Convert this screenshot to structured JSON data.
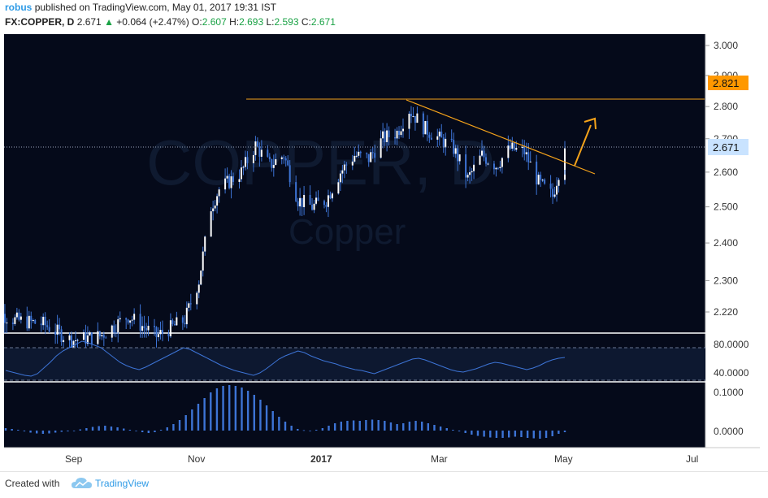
{
  "header": {
    "author": "robus",
    "published_text": "published on TradingView.com, May 01, 2017 19:31 IST",
    "symbol": "FX:COPPER, D",
    "last": "2.671",
    "up_arrow_icon": "up-triangle-icon",
    "change": "+0.064 (+2.47%)",
    "o_label": "O:",
    "o_value": "2.607",
    "h_label": "H:",
    "h_value": "2.693",
    "l_label": "L:",
    "l_value": "2.593",
    "c_label": "C:",
    "c_value": "2.671"
  },
  "watermark": {
    "symbol": "COPPER, D",
    "name": "Copper"
  },
  "price_axis": {
    "ticks": [
      "3.000",
      "2.900",
      "2.800",
      "2.700",
      "2.600",
      "2.500",
      "2.400",
      "2.300",
      "2.220"
    ],
    "badge_level": "2.821",
    "badge_last": "2.671"
  },
  "rsi_axis": {
    "ticks": [
      "80.0000",
      "40.0000"
    ]
  },
  "macd_axis": {
    "ticks": [
      "0.1000",
      "0.0000"
    ]
  },
  "time_axis": {
    "labels": [
      "Sep",
      "Nov",
      "2017",
      "Mar",
      "May",
      "Jul"
    ]
  },
  "colors": {
    "background": "#050a1a",
    "candle": "#3d74d6",
    "trendline": "#f5a31a",
    "badge_level": "#ff9800",
    "badge_last": "#c9e3ff",
    "axis_text": "#333333"
  },
  "chart_data": {
    "type": "candlestick",
    "symbol": "FX:COPPER",
    "timeframe": "D",
    "y_scale": "log",
    "ylim": [
      2.15,
      3.03
    ],
    "last_price": 2.671,
    "ohlc_last": {
      "open": 2.607,
      "high": 2.693,
      "low": 2.593,
      "close": 2.671
    },
    "horizontal_levels": [
      2.821
    ],
    "trendline": {
      "from": [
        "2017-02-13",
        2.82
      ],
      "to": [
        "2017-05-08",
        2.59
      ]
    },
    "projection_arrow": {
      "from": [
        "2017-05-04",
        2.61
      ],
      "to": [
        "2017-05-18",
        2.76
      ]
    },
    "close_series": [
      [
        "2016-07-19",
        2.23
      ],
      [
        "2016-08-02",
        2.2
      ],
      [
        "2016-08-16",
        2.19
      ],
      [
        "2016-08-30",
        2.15
      ],
      [
        "2016-09-13",
        2.16
      ],
      [
        "2016-09-27",
        2.21
      ],
      [
        "2016-10-11",
        2.16
      ],
      [
        "2016-10-25",
        2.2
      ],
      [
        "2016-11-01",
        2.3
      ],
      [
        "2016-11-07",
        2.5
      ],
      [
        "2016-11-11",
        2.55
      ],
      [
        "2016-11-22",
        2.6
      ],
      [
        "2016-11-29",
        2.68
      ],
      [
        "2016-12-06",
        2.62
      ],
      [
        "2016-12-13",
        2.65
      ],
      [
        "2016-12-20",
        2.52
      ],
      [
        "2016-12-27",
        2.5
      ],
      [
        "2017-01-03",
        2.52
      ],
      [
        "2017-01-10",
        2.6
      ],
      [
        "2017-01-17",
        2.65
      ],
      [
        "2017-01-24",
        2.64
      ],
      [
        "2017-01-31",
        2.7
      ],
      [
        "2017-02-07",
        2.72
      ],
      [
        "2017-02-13",
        2.79
      ],
      [
        "2017-02-21",
        2.73
      ],
      [
        "2017-02-28",
        2.7
      ],
      [
        "2017-03-07",
        2.67
      ],
      [
        "2017-03-14",
        2.58
      ],
      [
        "2017-03-21",
        2.65
      ],
      [
        "2017-03-28",
        2.62
      ],
      [
        "2017-04-04",
        2.67
      ],
      [
        "2017-04-11",
        2.66
      ],
      [
        "2017-04-18",
        2.57
      ],
      [
        "2017-04-25",
        2.53
      ],
      [
        "2017-05-01",
        2.671
      ]
    ],
    "rsi": {
      "reference_levels": [
        70,
        30
      ],
      "ticks": [
        80,
        40
      ],
      "series": [
        42,
        40,
        38,
        36,
        35,
        38,
        45,
        52,
        60,
        66,
        70,
        74,
        78,
        76,
        73,
        70,
        64,
        58,
        52,
        48,
        45,
        43,
        46,
        50,
        54,
        58,
        62,
        66,
        70,
        68,
        64,
        60,
        56,
        52,
        48,
        45,
        42,
        40,
        38,
        36,
        39,
        44,
        50,
        56,
        60,
        63,
        66,
        64,
        60,
        57,
        54,
        52,
        50,
        47,
        45,
        43,
        42,
        40,
        38,
        41,
        44,
        47,
        50,
        53,
        56,
        57,
        55,
        52,
        49,
        46,
        43,
        41,
        40,
        42,
        44,
        47,
        50,
        52,
        51,
        49,
        47,
        45,
        43,
        45,
        48,
        52,
        55,
        57,
        58
      ]
    },
    "macd_hist": {
      "ticks": [
        0.1,
        0.0
      ],
      "series": [
        0.006,
        0.004,
        0.002,
        -0.002,
        -0.005,
        -0.007,
        -0.008,
        -0.007,
        -0.005,
        -0.003,
        -0.002,
        0.0,
        0.003,
        0.006,
        0.009,
        0.011,
        0.012,
        0.01,
        0.008,
        0.005,
        0.002,
        -0.001,
        -0.004,
        -0.006,
        -0.004,
        0.002,
        0.008,
        0.016,
        0.026,
        0.038,
        0.052,
        0.066,
        0.08,
        0.094,
        0.104,
        0.11,
        0.112,
        0.11,
        0.106,
        0.098,
        0.088,
        0.076,
        0.062,
        0.048,
        0.034,
        0.022,
        0.012,
        0.004,
        0.001,
        0.0,
        0.002,
        0.006,
        0.012,
        0.018,
        0.022,
        0.024,
        0.025,
        0.024,
        0.026,
        0.027,
        0.026,
        0.024,
        0.02,
        0.016,
        0.018,
        0.022,
        0.024,
        0.022,
        0.018,
        0.014,
        0.01,
        0.006,
        0.002,
        -0.002,
        -0.006,
        -0.01,
        -0.013,
        -0.015,
        -0.017,
        -0.018,
        -0.018,
        -0.017,
        -0.015,
        -0.016,
        -0.018,
        -0.019,
        -0.02,
        -0.018,
        -0.014,
        -0.008,
        -0.004
      ]
    },
    "x_labels": [
      "Sep",
      "Nov",
      "2017",
      "Mar",
      "May",
      "Jul"
    ]
  },
  "footer": {
    "created_with": "Created with",
    "brand": "TradingView",
    "logo_icon": "tradingview-cloud-icon"
  }
}
